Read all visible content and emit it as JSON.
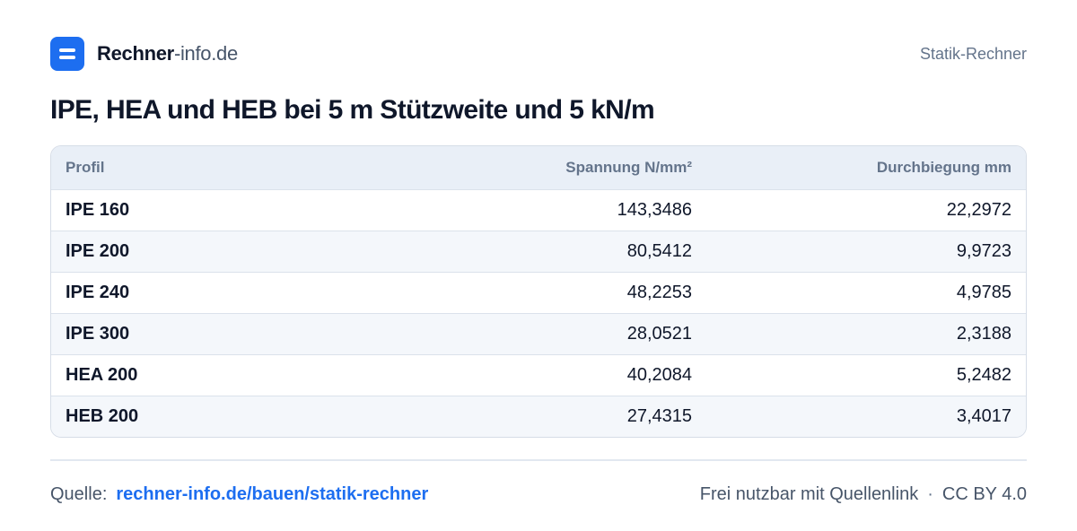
{
  "header": {
    "brand_bold": "Rechner",
    "brand_light": "-info.de",
    "right_label": "Statik-Rechner"
  },
  "title": "IPE, HEA und HEB bei 5 m Stützweite und 5 kN/m",
  "table": {
    "columns": [
      "Profil",
      "Spannung N/mm²",
      "Durchbiegung mm"
    ],
    "rows": [
      [
        "IPE 160",
        "143,3486",
        "22,2972"
      ],
      [
        "IPE 200",
        "80,5412",
        "9,9723"
      ],
      [
        "IPE 240",
        "48,2253",
        "4,9785"
      ],
      [
        "IPE 300",
        "28,0521",
        "2,3188"
      ],
      [
        "HEA 200",
        "40,2084",
        "5,2482"
      ],
      [
        "HEB 200",
        "27,4315",
        "3,4017"
      ]
    ]
  },
  "footer": {
    "source_label": "Quelle:",
    "source_link": "rechner-info.de/bauen/statik-rechner",
    "license_text": "Frei nutzbar mit Quellenlink",
    "separator": "·",
    "license_name": "CC BY 4.0"
  },
  "colors": {
    "accent": "#1d6ef0",
    "header_row": "#e9eff7",
    "alt_row": "#f4f7fb",
    "text": "#0f172a",
    "muted": "#64748b"
  }
}
